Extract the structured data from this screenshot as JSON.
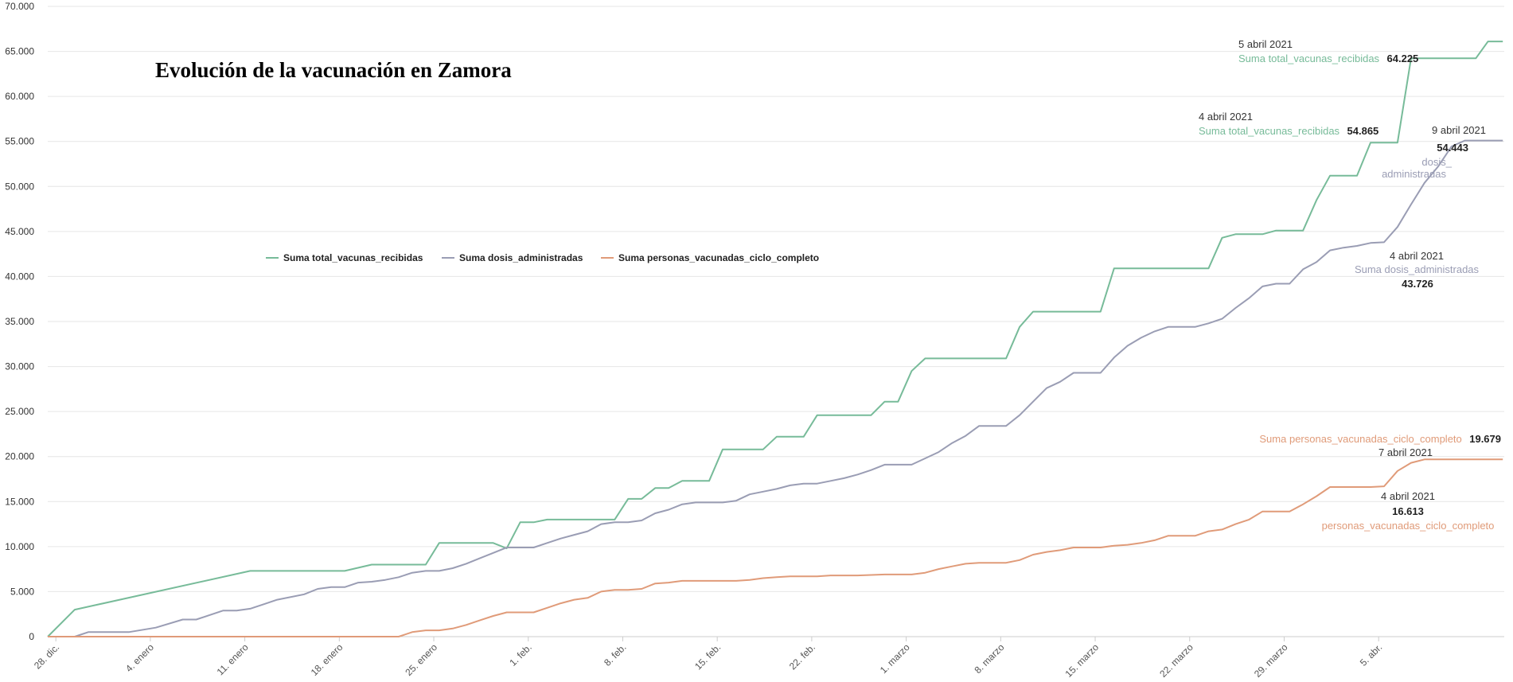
{
  "chart_data": {
    "type": "line",
    "title": "Evolución de la vacunación en Zamora",
    "xlabel": "",
    "ylabel": "",
    "ylim": [
      0,
      70000
    ],
    "yticks": [
      "0",
      "5.000",
      "10.000",
      "15.000",
      "20.000",
      "25.000",
      "30.000",
      "35.000",
      "40.000",
      "45.000",
      "50.000",
      "55.000",
      "60.000",
      "65.000",
      "70.000"
    ],
    "xticks": [
      {
        "day": 0,
        "label": "28. dic."
      },
      {
        "day": 7,
        "label": "4. enero"
      },
      {
        "day": 14,
        "label": "11. enero"
      },
      {
        "day": 21,
        "label": "18. enero"
      },
      {
        "day": 28,
        "label": "25. enero"
      },
      {
        "day": 35,
        "label": "1. feb."
      },
      {
        "day": 42,
        "label": "8. feb."
      },
      {
        "day": 49,
        "label": "15. feb."
      },
      {
        "day": 56,
        "label": "22. feb."
      },
      {
        "day": 63,
        "label": "1. marzo"
      },
      {
        "day": 70,
        "label": "8. marzo"
      },
      {
        "day": 77,
        "label": "15. marzo"
      },
      {
        "day": 84,
        "label": "22. marzo"
      },
      {
        "day": 91,
        "label": "29. marzo"
      },
      {
        "day": 98,
        "label": "5. abr."
      }
    ],
    "xrange": [
      -0.6,
      104.5
    ],
    "grid": true,
    "legend_position": "middle-left",
    "series": [
      {
        "name": "Suma total_vacunas_recibidas",
        "color": "#77bb99",
        "points": [
          [
            -0.6,
            0
          ],
          [
            1.4,
            3000
          ],
          [
            14.4,
            7300
          ],
          [
            21.4,
            7300
          ],
          [
            23.4,
            8000
          ],
          [
            27.4,
            8000
          ],
          [
            28.4,
            10400
          ],
          [
            32.4,
            10400
          ],
          [
            33.4,
            9800
          ],
          [
            34.4,
            12700
          ],
          [
            35.4,
            12700
          ],
          [
            36.4,
            13000
          ],
          [
            41.4,
            13000
          ],
          [
            42.4,
            15300
          ],
          [
            43.4,
            15300
          ],
          [
            44.4,
            16500
          ],
          [
            45.4,
            16500
          ],
          [
            46.4,
            17300
          ],
          [
            48.4,
            17300
          ],
          [
            49.4,
            20800
          ],
          [
            52.4,
            20800
          ],
          [
            53.4,
            22200
          ],
          [
            55.4,
            22200
          ],
          [
            56.4,
            24600
          ],
          [
            60.4,
            24600
          ],
          [
            61.4,
            26100
          ],
          [
            62.4,
            26100
          ],
          [
            63.4,
            29500
          ],
          [
            64.4,
            30900
          ],
          [
            70.4,
            30900
          ],
          [
            71.4,
            34400
          ],
          [
            72.4,
            36100
          ],
          [
            77.4,
            36100
          ],
          [
            78.4,
            40900
          ],
          [
            85.4,
            40900
          ],
          [
            86.4,
            44300
          ],
          [
            87.4,
            44700
          ],
          [
            89.4,
            44700
          ],
          [
            90.4,
            45100
          ],
          [
            92.4,
            45100
          ],
          [
            93.4,
            48500
          ],
          [
            94.4,
            51200
          ],
          [
            96.4,
            51200
          ],
          [
            97.4,
            54865
          ],
          [
            99.4,
            54865
          ],
          [
            100.4,
            64225
          ],
          [
            105.2,
            64225
          ],
          [
            106.1,
            66100
          ],
          [
            107.2,
            66100
          ]
        ]
      },
      {
        "name": "Suma dosis_administradas",
        "color": "#9a9db4",
        "points": [
          [
            -0.6,
            0
          ],
          [
            1.4,
            0
          ],
          [
            2.4,
            500
          ],
          [
            5.4,
            500
          ],
          [
            7.4,
            1000
          ],
          [
            9.4,
            1900
          ],
          [
            10.4,
            1900
          ],
          [
            12.4,
            2900
          ],
          [
            13.4,
            2900
          ],
          [
            14.4,
            3100
          ],
          [
            15.4,
            3600
          ],
          [
            16.4,
            4100
          ],
          [
            18.4,
            4700
          ],
          [
            19.4,
            5300
          ],
          [
            20.4,
            5500
          ],
          [
            21.4,
            5500
          ],
          [
            22.4,
            6000
          ],
          [
            23.4,
            6100
          ],
          [
            24.4,
            6300
          ],
          [
            25.4,
            6600
          ],
          [
            26.4,
            7100
          ],
          [
            27.4,
            7300
          ],
          [
            28.4,
            7300
          ],
          [
            29.4,
            7600
          ],
          [
            30.4,
            8100
          ],
          [
            31.4,
            8700
          ],
          [
            32.4,
            9300
          ],
          [
            33.4,
            9900
          ],
          [
            35.4,
            9900
          ],
          [
            36.4,
            10400
          ],
          [
            37.4,
            10900
          ],
          [
            38.4,
            11300
          ],
          [
            39.4,
            11700
          ],
          [
            40.4,
            12500
          ],
          [
            41.4,
            12700
          ],
          [
            42.4,
            12700
          ],
          [
            43.4,
            12900
          ],
          [
            44.4,
            13700
          ],
          [
            45.4,
            14100
          ],
          [
            46.4,
            14700
          ],
          [
            47.4,
            14900
          ],
          [
            49.4,
            14900
          ],
          [
            50.4,
            15100
          ],
          [
            51.4,
            15800
          ],
          [
            52.4,
            16100
          ],
          [
            53.4,
            16400
          ],
          [
            54.4,
            16800
          ],
          [
            55.4,
            17000
          ],
          [
            56.4,
            17000
          ],
          [
            57.4,
            17300
          ],
          [
            58.4,
            17600
          ],
          [
            59.4,
            18000
          ],
          [
            60.4,
            18500
          ],
          [
            61.4,
            19100
          ],
          [
            63.4,
            19100
          ],
          [
            64.4,
            19800
          ],
          [
            65.4,
            20500
          ],
          [
            66.4,
            21500
          ],
          [
            67.4,
            22300
          ],
          [
            68.4,
            23400
          ],
          [
            70.4,
            23400
          ],
          [
            71.4,
            24600
          ],
          [
            72.4,
            26100
          ],
          [
            73.4,
            27600
          ],
          [
            74.4,
            28300
          ],
          [
            75.4,
            29300
          ],
          [
            77.4,
            29300
          ],
          [
            78.4,
            31000
          ],
          [
            79.4,
            32300
          ],
          [
            80.4,
            33200
          ],
          [
            81.4,
            33900
          ],
          [
            82.4,
            34400
          ],
          [
            84.4,
            34400
          ],
          [
            85.4,
            34800
          ],
          [
            86.4,
            35300
          ],
          [
            87.4,
            36500
          ],
          [
            88.4,
            37600
          ],
          [
            89.4,
            38900
          ],
          [
            90.4,
            39200
          ],
          [
            91.4,
            39200
          ],
          [
            92.4,
            40800
          ],
          [
            93.4,
            41600
          ],
          [
            94.4,
            42900
          ],
          [
            95.4,
            43200
          ],
          [
            96.4,
            43400
          ],
          [
            97.4,
            43726
          ],
          [
            98.4,
            43800
          ],
          [
            99.4,
            45500
          ],
          [
            100.4,
            48000
          ],
          [
            101.4,
            50400
          ],
          [
            102.4,
            52200
          ],
          [
            103.4,
            54443
          ],
          [
            104.4,
            55100
          ],
          [
            107.2,
            55100
          ]
        ]
      },
      {
        "name": "Suma personas_vacunadas_ciclo_completo",
        "color": "#e09b79",
        "points": [
          [
            -0.6,
            0
          ],
          [
            25.4,
            0
          ],
          [
            26.4,
            500
          ],
          [
            27.4,
            700
          ],
          [
            28.4,
            700
          ],
          [
            29.4,
            900
          ],
          [
            30.4,
            1300
          ],
          [
            31.4,
            1800
          ],
          [
            32.4,
            2300
          ],
          [
            33.4,
            2700
          ],
          [
            35.4,
            2700
          ],
          [
            36.4,
            3200
          ],
          [
            37.4,
            3700
          ],
          [
            38.4,
            4100
          ],
          [
            39.4,
            4300
          ],
          [
            40.4,
            5000
          ],
          [
            41.4,
            5200
          ],
          [
            42.4,
            5200
          ],
          [
            43.4,
            5300
          ],
          [
            44.4,
            5900
          ],
          [
            45.4,
            6000
          ],
          [
            46.4,
            6200
          ],
          [
            47.4,
            6200
          ],
          [
            50.4,
            6200
          ],
          [
            51.4,
            6300
          ],
          [
            52.4,
            6500
          ],
          [
            53.4,
            6600
          ],
          [
            54.4,
            6700
          ],
          [
            56.4,
            6700
          ],
          [
            57.4,
            6800
          ],
          [
            59.4,
            6800
          ],
          [
            61.4,
            6900
          ],
          [
            63.4,
            6900
          ],
          [
            64.4,
            7100
          ],
          [
            65.4,
            7500
          ],
          [
            66.4,
            7800
          ],
          [
            67.4,
            8100
          ],
          [
            68.4,
            8200
          ],
          [
            70.4,
            8200
          ],
          [
            71.4,
            8500
          ],
          [
            72.4,
            9100
          ],
          [
            73.4,
            9400
          ],
          [
            74.4,
            9600
          ],
          [
            75.4,
            9900
          ],
          [
            77.4,
            9900
          ],
          [
            78.4,
            10100
          ],
          [
            79.4,
            10200
          ],
          [
            80.4,
            10400
          ],
          [
            81.4,
            10700
          ],
          [
            82.4,
            11200
          ],
          [
            84.4,
            11200
          ],
          [
            85.4,
            11700
          ],
          [
            86.4,
            11900
          ],
          [
            87.4,
            12500
          ],
          [
            88.4,
            13000
          ],
          [
            89.4,
            13900
          ],
          [
            91.4,
            13900
          ],
          [
            92.4,
            14700
          ],
          [
            93.4,
            15600
          ],
          [
            94.4,
            16613
          ],
          [
            97.4,
            16613
          ],
          [
            98.4,
            16700
          ],
          [
            99.4,
            18400
          ],
          [
            100.4,
            19300
          ],
          [
            101.4,
            19679
          ],
          [
            107.2,
            19679
          ]
        ]
      }
    ],
    "annotations": [
      {
        "date": "5 abril 2021",
        "series_label": "Suma total_vacunas_recibidas",
        "value": "64.225",
        "color": "#77bb99"
      },
      {
        "date": "4 abril 2021",
        "series_label": "Suma total_vacunas_recibidas",
        "value": "54.865",
        "color": "#77bb99"
      },
      {
        "date": "9 abril 2021",
        "value": "54.443",
        "series_label_line1": "dosis_",
        "series_label_line2": "administradas",
        "color": "#9a9db4"
      },
      {
        "date": "4 abril 2021",
        "series_label": "Suma dosis_administradas",
        "value": "43.726",
        "color": "#9a9db4"
      },
      {
        "series_label": "Suma personas_vacunadas_ciclo_completo",
        "value": "19.679",
        "date": "7 abril 2021",
        "color": "#e09b79"
      },
      {
        "date": "4 abril 2021",
        "value": "16.613",
        "series_label": "personas_vacunadas_ciclo_completo",
        "color": "#e09b79"
      }
    ]
  }
}
